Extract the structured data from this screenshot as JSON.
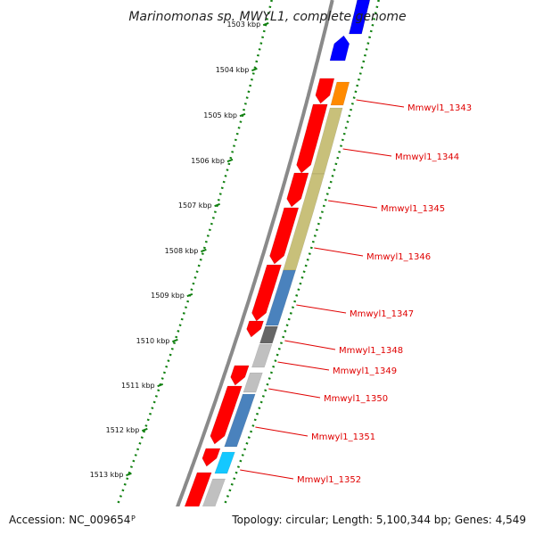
{
  "title": "Marinomonas sp. MWYL1, complete genome",
  "ticks": [
    "1503 kbp",
    "1504 kbp",
    "1505 kbp",
    "1506 kbp",
    "1507 kbp",
    "1508 kbp",
    "1509 kbp",
    "1510 kbp",
    "1511 kbp",
    "1512 kbp",
    "1513 kbp"
  ],
  "gene_labels": [
    "Mmwyl1_1343",
    "Mmwyl1_1344",
    "Mmwyl1_1345",
    "Mmwyl1_1346",
    "Mmwyl1_1347",
    "Mmwyl1_1348",
    "Mmwyl1_1349",
    "Mmwyl1_1350",
    "Mmwyl1_1351",
    "Mmwyl1_1352"
  ],
  "footer": {
    "accession": "Accession: NC_009654",
    "accession_tail": "P",
    "stats": "Topology: circular; Length: 5,100,344 bp; Genes: 4,549"
  },
  "colors": {
    "cds": "#ff0000",
    "backbone": "#8a8a8a",
    "dots": "#108010",
    "label": "#e00000",
    "cog_orange": "#ff8a00",
    "cog_khaki": "#c8c07a",
    "cog_steel": "#4a82bd",
    "cog_dark": "#666666",
    "cog_light": "#c0c0c0",
    "cog_cyan": "#14c8ff",
    "cog_blue": "#0000ff"
  }
}
